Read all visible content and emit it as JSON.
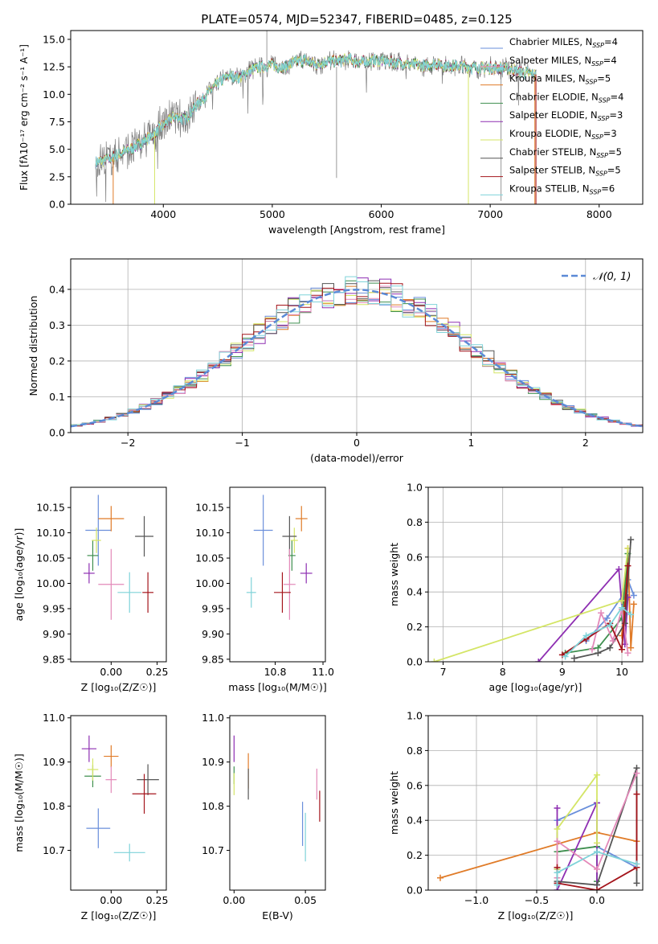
{
  "palette": [
    "#6a8fdb",
    "#e07b28",
    "#3f8f4f",
    "#8e2fb2",
    "#d4e566",
    "#555555",
    "#e389b9",
    "#a4141b",
    "#7fd3d9",
    "#7f7f7f"
  ],
  "chart_data": [
    {
      "id": "spectrum",
      "type": "line",
      "title": "PLATE=0574, MJD=52347, FIBERID=0485, z=0.125",
      "xlabel": "wavelength [Angstrom, rest frame]",
      "ylabel": "Flux [fλ10⁻¹⁷ erg cm⁻² s⁻¹ A⁻¹]",
      "xlim": [
        3150,
        8400
      ],
      "ylim": [
        0,
        15.8
      ],
      "xticks": [
        4000,
        5000,
        6000,
        7000,
        8000
      ],
      "yticks": [
        0,
        2.5,
        5.0,
        7.5,
        10.0,
        12.5,
        15.0
      ],
      "ytick_labels": [
        "0.0",
        "2.5",
        "5.0",
        "7.5",
        "10.0",
        "12.5",
        "15.0"
      ],
      "continuum": [
        [
          3380,
          3.8
        ],
        [
          3500,
          4.1
        ],
        [
          3600,
          4.6
        ],
        [
          3700,
          5.0
        ],
        [
          3800,
          5.6
        ],
        [
          3900,
          6.3
        ],
        [
          4000,
          7.2
        ],
        [
          4100,
          8.0
        ],
        [
          4200,
          7.7
        ],
        [
          4300,
          9.0
        ],
        [
          4400,
          10.0
        ],
        [
          4500,
          11.0
        ],
        [
          4600,
          11.7
        ],
        [
          4700,
          11.5
        ],
        [
          4800,
          12.2
        ],
        [
          4900,
          12.5
        ],
        [
          5000,
          12.7
        ],
        [
          5100,
          12.4
        ],
        [
          5200,
          12.9
        ],
        [
          5300,
          13.1
        ],
        [
          5400,
          12.7
        ],
        [
          5500,
          13.0
        ],
        [
          5600,
          13.0
        ],
        [
          5700,
          13.2
        ],
        [
          5800,
          12.9
        ],
        [
          5900,
          13.0
        ],
        [
          6000,
          13.1
        ],
        [
          6100,
          12.9
        ],
        [
          6200,
          12.8
        ],
        [
          6300,
          12.7
        ],
        [
          6400,
          12.6
        ],
        [
          6500,
          12.8
        ],
        [
          6600,
          12.6
        ],
        [
          6700,
          12.6
        ],
        [
          6800,
          12.5
        ],
        [
          6900,
          12.4
        ],
        [
          7000,
          12.4
        ],
        [
          7100,
          12.4
        ],
        [
          7200,
          12.3
        ],
        [
          7300,
          12.0
        ],
        [
          7420,
          11.8
        ]
      ],
      "legend_position": "upper right",
      "legend": [
        "Chabrier MILES, N_SSP=4",
        "Salpeter MILES, N_SSP=4",
        "Kroupa MILES, N_SSP=5",
        "Chabrier ELODIE, N_SSP=4",
        "Salpeter ELODIE, N_SSP=3",
        "Kroupa ELODIE, N_SSP=3",
        "Chabrier STELIB, N_SSP=5",
        "Salpeter STELIB, N_SSP=5",
        "Kroupa STELIB, N_SSP=6"
      ],
      "legend_colors": [
        "#6a8fdb",
        "#e389b9",
        "#e07b28",
        "#3f8f4f",
        "#8e2fb2",
        "#d4e566",
        "#555555",
        "#a4141b",
        "#7fd3d9"
      ]
    },
    {
      "id": "residuals",
      "type": "histogram",
      "xlabel": "(data-model)/error",
      "ylabel": "Normed distribution",
      "xlim": [
        -2.5,
        2.5
      ],
      "ylim": [
        0,
        0.485
      ],
      "xticks": [
        -2,
        -1,
        0,
        1,
        2
      ],
      "xtick_labels": [
        "−2",
        "−1",
        "0",
        "1",
        "2"
      ],
      "yticks": [
        0,
        0.1,
        0.2,
        0.3,
        0.4
      ],
      "ytick_labels": [
        "0.0",
        "0.1",
        "0.2",
        "0.3",
        "0.4"
      ],
      "grid": true,
      "legend": "𝒩(0, 1)",
      "gaussian": {
        "mean": 0,
        "sigma": 1
      },
      "bin_width": 0.1
    },
    {
      "id": "age-vs-z",
      "type": "errorbar",
      "xlabel": "Z [log₁₀(Z/Z☉)]",
      "ylabel": "age  [log₁₀(age/yr)]",
      "xlim": [
        -0.22,
        0.3
      ],
      "ylim": [
        9.845,
        10.19
      ],
      "xticks": [
        0.0,
        0.25
      ],
      "xtick_labels": [
        "0.00",
        "0.25"
      ],
      "yticks": [
        9.85,
        9.9,
        9.95,
        10.0,
        10.05,
        10.1,
        10.15
      ],
      "ytick_labels": [
        "9.85",
        "9.90",
        "9.95",
        "10.00",
        "10.05",
        "10.10",
        "10.15"
      ],
      "points": [
        {
          "c": 0,
          "x": -0.07,
          "y": 10.105,
          "xe": 0.14,
          "ye": 0.14
        },
        {
          "c": 1,
          "x": 0.0,
          "y": 10.128,
          "xe": 0.14,
          "ye": 0.05
        },
        {
          "c": 2,
          "x": -0.1,
          "y": 10.055,
          "xe": 0.06,
          "ye": 0.06
        },
        {
          "c": 3,
          "x": -0.12,
          "y": 10.02,
          "xe": 0.06,
          "ye": 0.04
        },
        {
          "c": 4,
          "x": -0.08,
          "y": 10.085,
          "xe": 0.05,
          "ye": 0.05
        },
        {
          "c": 5,
          "x": 0.18,
          "y": 10.093,
          "xe": 0.1,
          "ye": 0.08
        },
        {
          "c": 6,
          "x": 0.0,
          "y": 9.998,
          "xe": 0.14,
          "ye": 0.14
        },
        {
          "c": 7,
          "x": 0.2,
          "y": 9.982,
          "xe": 0.06,
          "ye": 0.08
        },
        {
          "c": 8,
          "x": 0.1,
          "y": 9.982,
          "xe": 0.13,
          "ye": 0.08
        }
      ]
    },
    {
      "id": "age-vs-mass",
      "type": "errorbar",
      "xlabel": "mass [log₁₀(M/M☉)]",
      "ylabel": "",
      "xlim": [
        10.61,
        11.01
      ],
      "ylim": [
        9.845,
        10.19
      ],
      "xticks": [
        10.8,
        11.0
      ],
      "xtick_labels": [
        "10.8",
        "11.0"
      ],
      "yticks": [
        9.85,
        9.9,
        9.95,
        10.0,
        10.05,
        10.1,
        10.15
      ],
      "ytick_labels": [
        "9.85",
        "9.90",
        "9.95",
        "10.00",
        "10.05",
        "10.10",
        "10.15"
      ],
      "points": [
        {
          "c": 0,
          "x": 10.75,
          "y": 10.105,
          "xe": 0.08,
          "ye": 0.14
        },
        {
          "c": 1,
          "x": 10.91,
          "y": 10.128,
          "xe": 0.05,
          "ye": 0.05
        },
        {
          "c": 2,
          "x": 10.87,
          "y": 10.055,
          "xe": 0.03,
          "ye": 0.06
        },
        {
          "c": 3,
          "x": 10.93,
          "y": 10.02,
          "xe": 0.05,
          "ye": 0.04
        },
        {
          "c": 4,
          "x": 10.88,
          "y": 10.085,
          "xe": 0.03,
          "ye": 0.05
        },
        {
          "c": 5,
          "x": 10.86,
          "y": 10.093,
          "xe": 0.06,
          "ye": 0.08
        },
        {
          "c": 6,
          "x": 10.86,
          "y": 9.998,
          "xe": 0.05,
          "ye": 0.14
        },
        {
          "c": 7,
          "x": 10.83,
          "y": 9.982,
          "xe": 0.07,
          "ye": 0.08
        },
        {
          "c": 8,
          "x": 10.7,
          "y": 9.982,
          "xe": 0.04,
          "ye": 0.06
        }
      ]
    },
    {
      "id": "weight-vs-age",
      "type": "line",
      "xlabel": "age  [log₁₀(age/yr)]",
      "ylabel": "mass weight",
      "xlim": [
        6.75,
        10.35
      ],
      "ylim": [
        0,
        1.0
      ],
      "xticks": [
        7,
        8,
        9,
        10
      ],
      "xtick_labels": [
        "7",
        "8",
        "9",
        "10"
      ],
      "yticks": [
        0,
        0.2,
        0.4,
        0.6,
        0.8,
        1.0
      ],
      "ytick_labels": [
        "0.0",
        "0.2",
        "0.4",
        "0.6",
        "0.8",
        "1.0"
      ],
      "grid": true,
      "series": [
        {
          "c": 0,
          "x": [
            9.4,
            9.75,
            10.05,
            10.1,
            10.2
          ],
          "y": [
            0.12,
            0.25,
            0.4,
            0.47,
            0.38
          ]
        },
        {
          "c": 1,
          "x": [
            10.0,
            10.1,
            10.15,
            10.2
          ],
          "y": [
            0.15,
            0.65,
            0.08,
            0.33
          ]
        },
        {
          "c": 2,
          "x": [
            9.05,
            9.6,
            10.0,
            10.1
          ],
          "y": [
            0.05,
            0.08,
            0.25,
            0.62
          ]
        },
        {
          "c": 3,
          "x": [
            8.6,
            9.95,
            10.05,
            10.1
          ],
          "y": [
            0.0,
            0.53,
            0.1,
            0.37
          ]
        },
        {
          "c": 4,
          "x": [
            6.85,
            10.0,
            10.1
          ],
          "y": [
            0.0,
            0.35,
            0.65
          ]
        },
        {
          "c": 5,
          "x": [
            9.2,
            9.6,
            9.8,
            10.05,
            10.15
          ],
          "y": [
            0.02,
            0.05,
            0.08,
            0.22,
            0.7
          ]
        },
        {
          "c": 6,
          "x": [
            9.5,
            9.65,
            9.85,
            10.0,
            10.1
          ],
          "y": [
            0.07,
            0.28,
            0.12,
            0.3,
            0.05
          ]
        },
        {
          "c": 7,
          "x": [
            9.0,
            9.4,
            9.8,
            10.0,
            10.1
          ],
          "y": [
            0.04,
            0.13,
            0.22,
            0.07,
            0.55
          ]
        },
        {
          "c": 8,
          "x": [
            9.05,
            9.4,
            9.8,
            10.0,
            10.15
          ],
          "y": [
            0.03,
            0.15,
            0.21,
            0.31,
            0.27
          ]
        }
      ]
    },
    {
      "id": "mass-vs-z",
      "type": "errorbar",
      "xlabel": "Z [log₁₀(Z/Z☉)]",
      "ylabel": "mass [log₁₀(M/M☉)]",
      "xlim": [
        -0.22,
        0.3
      ],
      "ylim": [
        10.61,
        11.005
      ],
      "xticks": [
        0.0,
        0.25
      ],
      "xtick_labels": [
        "0.00",
        "0.25"
      ],
      "yticks": [
        10.7,
        10.8,
        10.9,
        11.0
      ],
      "ytick_labels": [
        "10.7",
        "10.8",
        "10.9",
        "11.0"
      ],
      "points": [
        {
          "c": 0,
          "x": -0.07,
          "y": 10.75,
          "xe": 0.13,
          "ye": 0.09
        },
        {
          "c": 1,
          "x": 0.0,
          "y": 10.913,
          "xe": 0.08,
          "ye": 0.05
        },
        {
          "c": 2,
          "x": -0.1,
          "y": 10.868,
          "xe": 0.09,
          "ye": 0.05
        },
        {
          "c": 3,
          "x": -0.12,
          "y": 10.93,
          "xe": 0.08,
          "ye": 0.06
        },
        {
          "c": 4,
          "x": -0.1,
          "y": 10.883,
          "xe": 0.06,
          "ye": 0.05
        },
        {
          "c": 5,
          "x": 0.2,
          "y": 10.86,
          "xe": 0.12,
          "ye": 0.07
        },
        {
          "c": 6,
          "x": 0.0,
          "y": 10.86,
          "xe": 0.06,
          "ye": 0.06
        },
        {
          "c": 7,
          "x": 0.18,
          "y": 10.828,
          "xe": 0.13,
          "ye": 0.09
        },
        {
          "c": 8,
          "x": 0.1,
          "y": 10.695,
          "xe": 0.17,
          "ye": 0.04
        }
      ]
    },
    {
      "id": "mass-vs-ebv",
      "type": "errorbar",
      "xlabel": "E(B-V)",
      "ylabel": "",
      "xlim": [
        -0.003,
        0.064
      ],
      "ylim": [
        10.61,
        11.005
      ],
      "xticks": [
        0.0,
        0.05
      ],
      "xtick_labels": [
        "0.00",
        "0.05"
      ],
      "yticks": [
        10.7,
        10.8,
        10.9,
        11.0
      ],
      "ytick_labels": [
        "10.7",
        "10.8",
        "10.9",
        "11.0"
      ],
      "points": [
        {
          "c": 0,
          "x": 0.048,
          "y": 10.76,
          "xe": 0,
          "ye": 0.1
        },
        {
          "c": 1,
          "x": 0.01,
          "y": 10.88,
          "xe": 0,
          "ye": 0.08
        },
        {
          "c": 2,
          "x": 0.0,
          "y": 10.87,
          "xe": 0,
          "ye": 0.04
        },
        {
          "c": 3,
          "x": 0.0,
          "y": 10.93,
          "xe": 0,
          "ye": 0.06
        },
        {
          "c": 4,
          "x": 0.0,
          "y": 10.85,
          "xe": 0,
          "ye": 0.05
        },
        {
          "c": 5,
          "x": 0.01,
          "y": 10.85,
          "xe": 0,
          "ye": 0.07
        },
        {
          "c": 6,
          "x": 0.058,
          "y": 10.85,
          "xe": 0,
          "ye": 0.07
        },
        {
          "c": 7,
          "x": 0.06,
          "y": 10.8,
          "xe": 0,
          "ye": 0.07
        },
        {
          "c": 8,
          "x": 0.05,
          "y": 10.73,
          "xe": 0,
          "ye": 0.11
        }
      ]
    },
    {
      "id": "weight-vs-z",
      "type": "line",
      "xlabel": "Z [log₁₀(Z/Z☉)]",
      "ylabel": "mass weight",
      "xlim": [
        -1.4,
        0.38
      ],
      "ylim": [
        0,
        1.0
      ],
      "xticks": [
        -1.0,
        -0.5,
        0.0
      ],
      "xtick_labels": [
        "−1.0",
        "−0.5",
        "0.0"
      ],
      "yticks": [
        0,
        0.2,
        0.4,
        0.6,
        0.8,
        1.0
      ],
      "ytick_labels": [
        "0.0",
        "0.2",
        "0.4",
        "0.6",
        "0.8",
        "1.0"
      ],
      "grid": true,
      "series": [
        {
          "c": 0,
          "x": [
            -0.33,
            -0.33,
            0.0,
            0.0,
            0.33
          ],
          "y": [
            0.12,
            0.4,
            0.5,
            0.25,
            0.13
          ]
        },
        {
          "c": 1,
          "x": [
            -1.3,
            0.0,
            0.33
          ],
          "y": [
            0.07,
            0.33,
            0.28
          ]
        },
        {
          "c": 2,
          "x": [
            -0.33,
            0.0,
            0.0
          ],
          "y": [
            0.22,
            0.25,
            0.05
          ]
        },
        {
          "c": 3,
          "x": [
            -0.33,
            -0.33,
            0.0,
            0.0
          ],
          "y": [
            0.47,
            0.0,
            0.5,
            0.03
          ]
        },
        {
          "c": 4,
          "x": [
            -0.33,
            -0.33,
            0.0,
            0.0
          ],
          "y": [
            0.12,
            0.35,
            0.66,
            0.27
          ]
        },
        {
          "c": 5,
          "x": [
            -0.33,
            0.0,
            0.33,
            0.33
          ],
          "y": [
            0.05,
            0.03,
            0.7,
            0.04
          ]
        },
        {
          "c": 6,
          "x": [
            -0.33,
            -0.33,
            0.0,
            0.33
          ],
          "y": [
            0.07,
            0.28,
            0.12,
            0.67
          ]
        },
        {
          "c": 7,
          "x": [
            -0.33,
            -0.33,
            0.0,
            0.33,
            0.33
          ],
          "y": [
            0.13,
            0.04,
            0.0,
            0.13,
            0.55
          ]
        },
        {
          "c": 8,
          "x": [
            -0.33,
            -0.33,
            0.0,
            0.33
          ],
          "y": [
            0.03,
            0.1,
            0.22,
            0.15
          ]
        }
      ]
    }
  ]
}
